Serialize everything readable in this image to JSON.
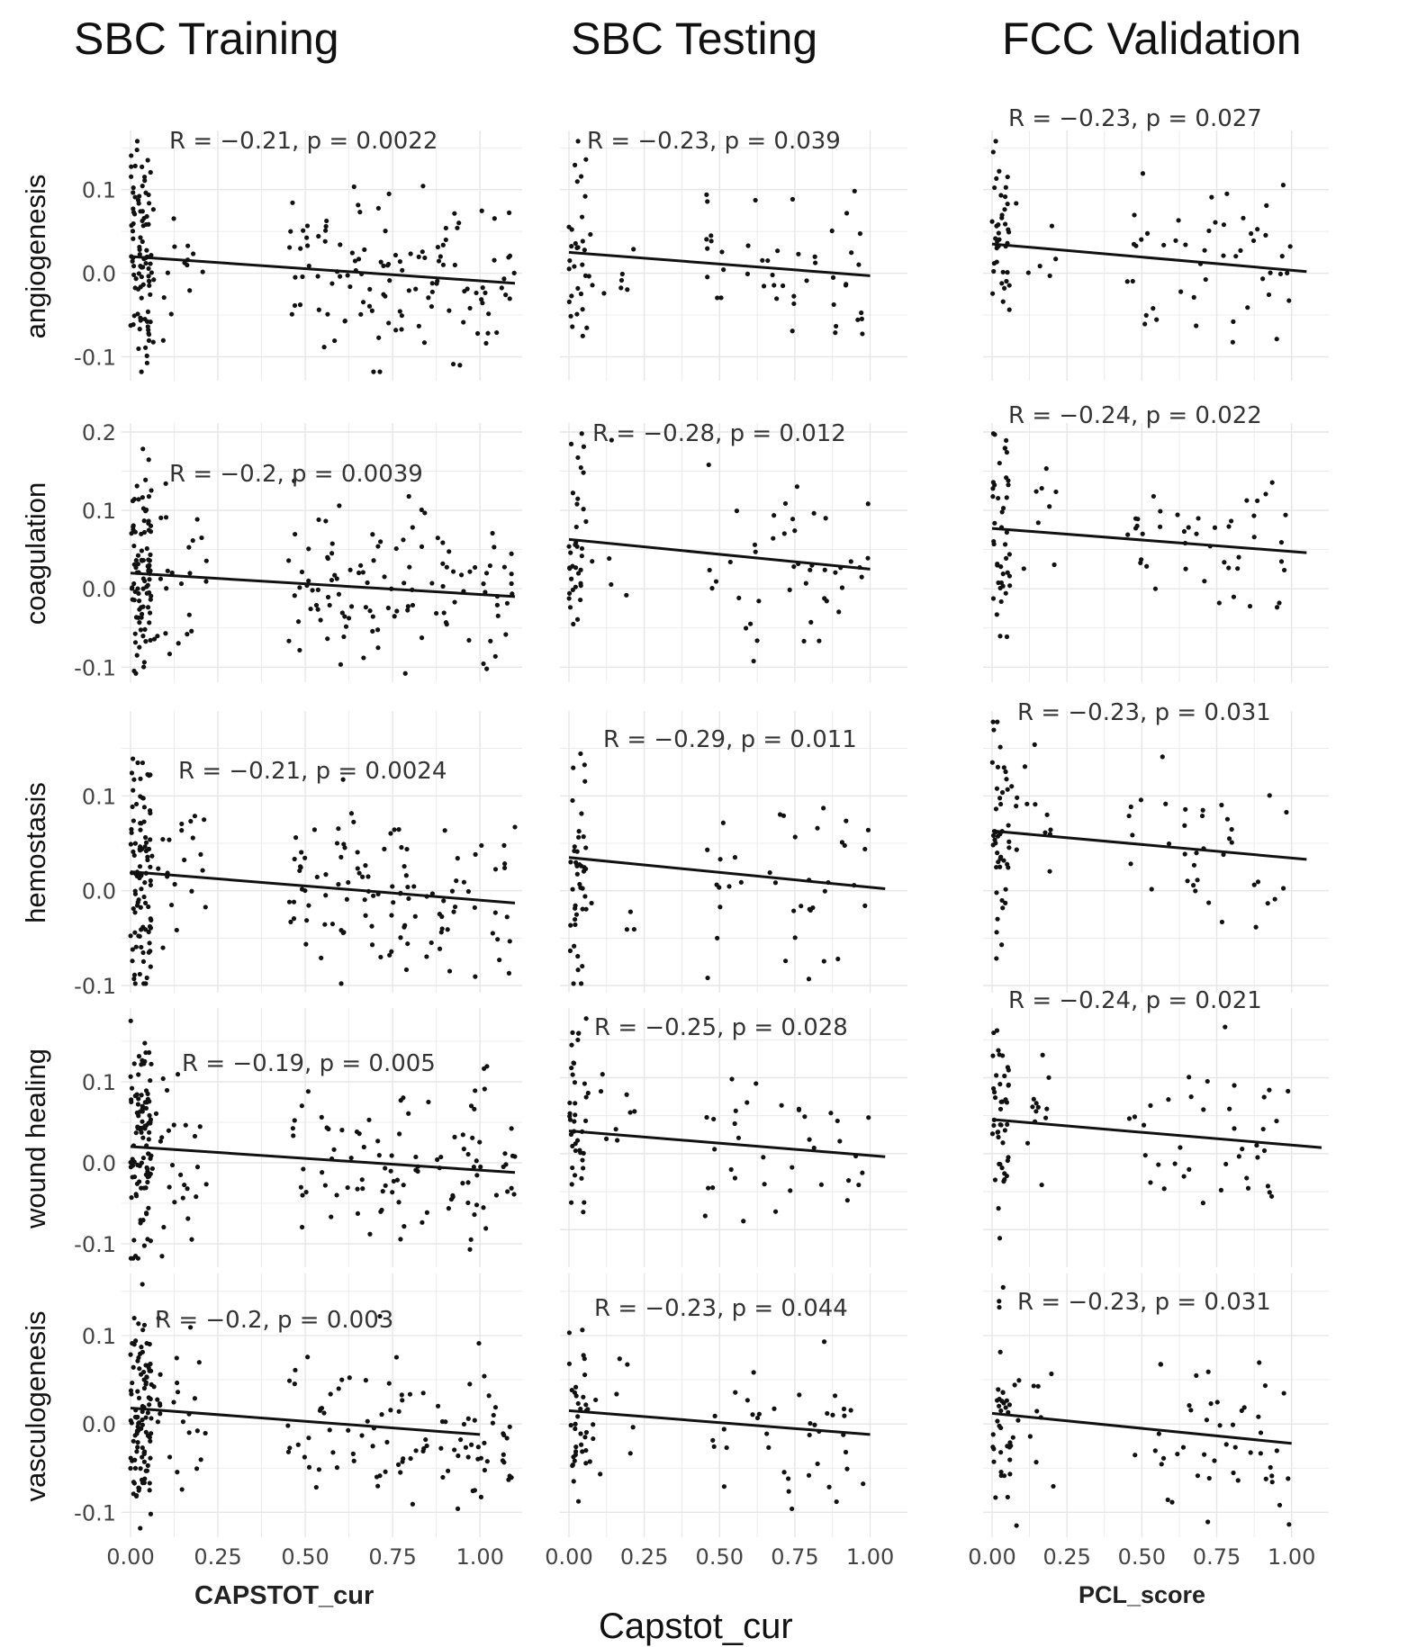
{
  "column_titles": [
    "SBC Training",
    "SBC Testing",
    "FCC Validation"
  ],
  "x_axis_titles": {
    "training": "CAPSTOT_cur",
    "testing": "Capstot_cur",
    "validation": "PCL_score"
  },
  "colors": {
    "points": "#111111",
    "fit_line": "#111111",
    "grid": "#e6e6e6",
    "text": "#222222"
  },
  "chart_data": {
    "type": "scatter",
    "rows": [
      "angiogenesis",
      "coagulation",
      "hemostasis",
      "wound healing",
      "vasculogenesis"
    ],
    "columns": [
      "SBC Training",
      "SBC Testing",
      "FCC Validation"
    ],
    "x_ticks": [
      "0.00",
      "0.25",
      "0.50",
      "0.75",
      "1.00"
    ],
    "xlim": [
      0,
      1.1
    ],
    "grid": true,
    "fit": "linear regression line",
    "panels": [
      {
        "row": "angiogenesis",
        "column": "SBC Training",
        "label": "R = −0.21, p = 0.0022",
        "y_ticks": [
          "0.1",
          "0.0",
          "-0.1"
        ],
        "ylim": [
          -0.12,
          0.16
        ],
        "fit_line": [
          [
            0.0,
            0.02
          ],
          [
            1.1,
            -0.012
          ]
        ],
        "point_count": 230
      },
      {
        "row": "angiogenesis",
        "column": "SBC Testing",
        "label": "R = −0.23, p = 0.039",
        "y_ticks": [],
        "ylim": [
          -0.12,
          0.16
        ],
        "fit_line": [
          [
            0.0,
            0.025
          ],
          [
            1.0,
            -0.003
          ]
        ],
        "point_count": 85
      },
      {
        "row": "angiogenesis",
        "column": "FCC Validation",
        "label": "R = −0.23, p = 0.027",
        "y_ticks": [],
        "ylim": [
          -0.12,
          0.16
        ],
        "fit_line": [
          [
            0.0,
            0.035
          ],
          [
            1.05,
            0.002
          ]
        ],
        "point_count": 95
      },
      {
        "row": "coagulation",
        "column": "SBC Training",
        "label": "R = −0.2, p = 0.0039",
        "y_ticks": [
          "0.2",
          "0.1",
          "0.0",
          "-0.1"
        ],
        "ylim": [
          -0.11,
          0.2
        ],
        "fit_line": [
          [
            0.0,
            0.02
          ],
          [
            1.1,
            -0.01
          ]
        ],
        "point_count": 230
      },
      {
        "row": "coagulation",
        "column": "SBC Testing",
        "label": "R = −0.28, p = 0.012",
        "y_ticks": [],
        "ylim": [
          -0.11,
          0.2
        ],
        "fit_line": [
          [
            0.0,
            0.063
          ],
          [
            1.0,
            0.025
          ]
        ],
        "point_count": 85
      },
      {
        "row": "coagulation",
        "column": "FCC Validation",
        "label": "R = −0.24, p = 0.022",
        "y_ticks": [],
        "ylim": [
          -0.11,
          0.2
        ],
        "fit_line": [
          [
            0.0,
            0.077
          ],
          [
            1.05,
            0.046
          ]
        ],
        "point_count": 95
      },
      {
        "row": "hemostasis",
        "column": "SBC Training",
        "label": "R = −0.21, p = 0.0024",
        "y_ticks": [
          "0.1",
          "0.0",
          "-0.1"
        ],
        "ylim": [
          -0.1,
          0.18
        ],
        "fit_line": [
          [
            0.0,
            0.02
          ],
          [
            1.1,
            -0.013
          ]
        ],
        "point_count": 230
      },
      {
        "row": "hemostasis",
        "column": "SBC Testing",
        "label": "R = −0.29, p = 0.011",
        "y_ticks": [],
        "ylim": [
          -0.1,
          0.18
        ],
        "fit_line": [
          [
            0.0,
            0.035
          ],
          [
            1.05,
            0.002
          ]
        ],
        "point_count": 85
      },
      {
        "row": "hemostasis",
        "column": "FCC Validation",
        "label": "R = −0.23, p = 0.031",
        "y_ticks": [],
        "ylim": [
          -0.1,
          0.18
        ],
        "fit_line": [
          [
            0.0,
            0.063
          ],
          [
            1.05,
            0.033
          ]
        ],
        "point_count": 95
      },
      {
        "row": "wound healing",
        "column": "SBC Training",
        "label": "R = −0.19, p = 0.005",
        "y_ticks": [
          "0.1",
          "0.0",
          "-0.1"
        ],
        "ylim": [
          -0.12,
          0.18
        ],
        "fit_line": [
          [
            0.0,
            0.02
          ],
          [
            1.1,
            -0.012
          ]
        ],
        "point_count": 230
      },
      {
        "row": "wound healing",
        "column": "SBC Testing",
        "label": "R = −0.25, p = 0.028",
        "y_ticks": [],
        "ylim": [
          -0.14,
          0.18
        ],
        "fit_line": [
          [
            0.0,
            0.03
          ],
          [
            1.05,
            -0.004
          ]
        ],
        "point_count": 85
      },
      {
        "row": "wound healing",
        "column": "FCC Validation",
        "label": "R = −0.24, p = 0.021",
        "y_ticks": [],
        "ylim": [
          -0.14,
          0.18
        ],
        "fit_line": [
          [
            0.0,
            0.045
          ],
          [
            1.1,
            0.008
          ]
        ],
        "point_count": 95
      },
      {
        "row": "vasculogenesis",
        "column": "SBC Training",
        "label": "R = −0.2, p = 0.003",
        "y_ticks": [
          "0.1",
          "0.0",
          "-0.1"
        ],
        "ylim": [
          -0.12,
          0.16
        ],
        "fit_line": [
          [
            0.0,
            0.018
          ],
          [
            1.0,
            -0.012
          ]
        ],
        "point_count": 230
      },
      {
        "row": "vasculogenesis",
        "column": "SBC Testing",
        "label": "R = −0.23, p = 0.044",
        "y_ticks": [],
        "ylim": [
          -0.12,
          0.16
        ],
        "fit_line": [
          [
            0.0,
            0.015
          ],
          [
            1.0,
            -0.012
          ]
        ],
        "point_count": 85
      },
      {
        "row": "vasculogenesis",
        "column": "FCC Validation",
        "label": "R = −0.23, p = 0.031",
        "y_ticks": [],
        "ylim": [
          -0.12,
          0.16
        ],
        "fit_line": [
          [
            0.0,
            0.012
          ],
          [
            1.0,
            -0.022
          ]
        ],
        "point_count": 95
      }
    ]
  }
}
